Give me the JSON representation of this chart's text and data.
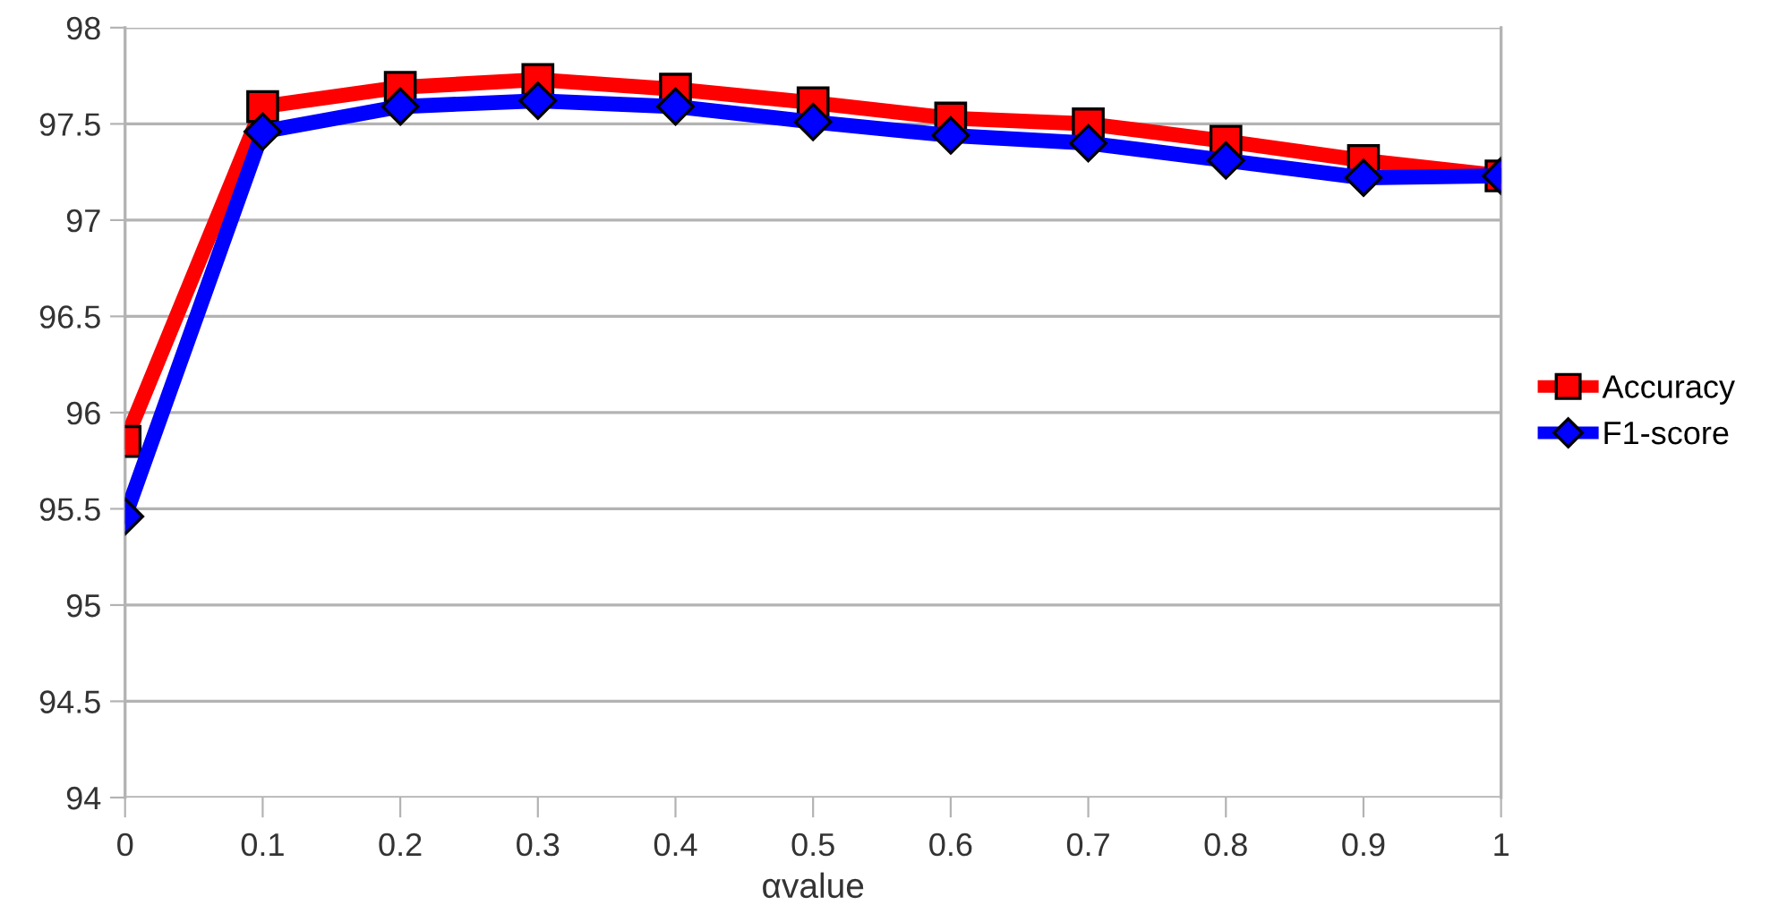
{
  "chart_data": {
    "type": "line",
    "xlabel": "αvalue",
    "categories": [
      "0",
      "0.1",
      "0.2",
      "0.3",
      "0.4",
      "0.5",
      "0.6",
      "0.7",
      "0.8",
      "0.9",
      "1"
    ],
    "series": [
      {
        "name": "Accuracy",
        "color": "#ff0000",
        "marker": "square",
        "values": [
          95.85,
          97.59,
          97.69,
          97.73,
          97.68,
          97.61,
          97.53,
          97.5,
          97.41,
          97.31,
          97.23
        ]
      },
      {
        "name": "F1-score",
        "color": "#0000ff",
        "marker": "diamond",
        "values": [
          95.46,
          97.46,
          97.59,
          97.62,
          97.59,
          97.51,
          97.44,
          97.4,
          97.31,
          97.22,
          97.23
        ]
      }
    ],
    "ylim": [
      94,
      98
    ],
    "yticks": [
      94,
      94.5,
      95,
      95.5,
      96,
      96.5,
      97,
      97.5,
      98
    ],
    "grid": "y",
    "legend": "right",
    "line_style": "solid"
  }
}
